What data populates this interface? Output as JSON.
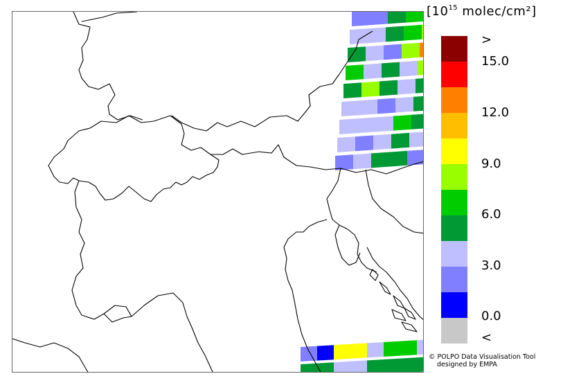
{
  "legend": {
    "unit_prefix": "[10",
    "unit_exp": "15",
    "unit_suffix": " molec/cm²]",
    "colors": [
      "#8b0000",
      "#ff0000",
      "#ff7f00",
      "#ffbf00",
      "#ffff00",
      "#99ff00",
      "#00cc00",
      "#009933",
      "#bfbfff",
      "#7f7fff",
      "#0000ff",
      "#c8c8c8"
    ],
    "labels": [
      ">",
      "15.0",
      "12.0",
      "9.0",
      "6.0",
      "3.0",
      "0.0",
      "<"
    ]
  },
  "credits": {
    "line1": "© POLPO Data Visualisation Tool",
    "line2": "designed by EMPA"
  },
  "map": {
    "grid_colors": {
      "a": "#7f7fff",
      "b": "#bfbfff",
      "c": "#009933",
      "d": "#00cc00",
      "e": "#99ff00",
      "f": "#ffff00",
      "g": "#ff7f00",
      "h": "#0000ff"
    },
    "top_swath": [
      [
        "a",
        "a",
        "c",
        "d",
        "f"
      ],
      [
        "b",
        "b",
        "c",
        "d",
        "e"
      ],
      [
        "c",
        "b",
        "a",
        "e",
        "g"
      ],
      [
        "d",
        "b",
        "c",
        "b",
        "e"
      ],
      [
        "c",
        "e",
        "c",
        "b",
        "c"
      ],
      [
        "b",
        "b",
        "a",
        "b",
        "c"
      ],
      [
        "b",
        "b",
        "b",
        "d",
        "c"
      ],
      [
        "b",
        "a",
        "b",
        "c",
        "b"
      ],
      [
        "a",
        "b",
        "c",
        "c",
        "a"
      ]
    ],
    "bottom_swath": [
      [
        "a",
        "h",
        "f",
        "f",
        "b",
        "d",
        "d",
        "b"
      ],
      [
        "c",
        "c",
        "b",
        "b",
        "c",
        "c",
        "c",
        "c"
      ]
    ]
  }
}
